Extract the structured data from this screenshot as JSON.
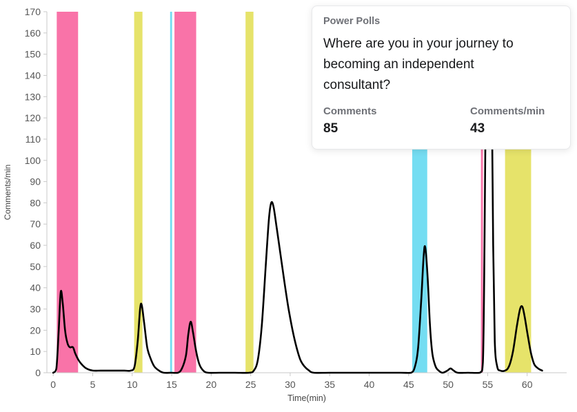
{
  "tooltip": {
    "title": "Power Polls",
    "question": "Where are you in your journey to becoming an independent consultant?",
    "stats": [
      {
        "label": "Comments",
        "value": "85"
      },
      {
        "label": "Comments/min",
        "value": "43"
      }
    ]
  },
  "chart_data": {
    "type": "line",
    "title": "",
    "xlabel": "Time(min)",
    "ylabel": "Comments/min",
    "xlim": [
      -0.8,
      65
    ],
    "ylim": [
      0,
      170
    ],
    "x_ticks": [
      0,
      5,
      10,
      15,
      20,
      25,
      30,
      35,
      40,
      45,
      50,
      55,
      60
    ],
    "y_ticks": [
      0,
      10,
      20,
      30,
      40,
      50,
      60,
      70,
      80,
      90,
      100,
      110,
      120,
      130,
      140,
      150,
      160,
      170
    ],
    "grid": false,
    "legend": "none",
    "line_color": "#000000",
    "axis_color": "#c9c9c9",
    "tick_text_color": "#555555",
    "axis_label_color": "#444444",
    "band_colors": {
      "pink": "#f973a8",
      "yellow": "#e6e36a",
      "cyan": "#74ddf2"
    },
    "bands": [
      {
        "label": "pink-1",
        "from": 0.45,
        "to": 3.15,
        "color": "#f973a8"
      },
      {
        "label": "yellow-1",
        "from": 10.25,
        "to": 11.3,
        "color": "#e6e36a"
      },
      {
        "label": "cyan-1",
        "from": 14.8,
        "to": 15.05,
        "color": "#74ddf2"
      },
      {
        "label": "pink-2",
        "from": 15.35,
        "to": 18.1,
        "color": "#f973a8"
      },
      {
        "label": "yellow-2",
        "from": 24.35,
        "to": 25.35,
        "color": "#e6e36a"
      },
      {
        "label": "cyan-2",
        "from": 45.45,
        "to": 47.35,
        "color": "#74ddf2"
      },
      {
        "label": "pink-3",
        "from": 54.15,
        "to": 54.4,
        "color": "#f973a8"
      },
      {
        "label": "yellow-3",
        "from": 57.2,
        "to": 60.5,
        "color": "#e6e36a"
      }
    ],
    "series": [
      {
        "name": "Comments/min",
        "points": [
          [
            0,
            0
          ],
          [
            0.4,
            2
          ],
          [
            0.7,
            20
          ],
          [
            0.95,
            38
          ],
          [
            1.2,
            33
          ],
          [
            1.5,
            20
          ],
          [
            1.8,
            14
          ],
          [
            2.1,
            12
          ],
          [
            2.5,
            12
          ],
          [
            2.8,
            9
          ],
          [
            3.2,
            6
          ],
          [
            3.6,
            4
          ],
          [
            4.2,
            2
          ],
          [
            5,
            1
          ],
          [
            6,
            1
          ],
          [
            7,
            1
          ],
          [
            8,
            1
          ],
          [
            9,
            1
          ],
          [
            9.8,
            1
          ],
          [
            10.3,
            3
          ],
          [
            10.7,
            15
          ],
          [
            11.0,
            30
          ],
          [
            11.2,
            32
          ],
          [
            11.5,
            24
          ],
          [
            11.9,
            12
          ],
          [
            12.3,
            7
          ],
          [
            12.8,
            3
          ],
          [
            13.4,
            1
          ],
          [
            14,
            0
          ],
          [
            15,
            0
          ],
          [
            15.8,
            0
          ],
          [
            16.3,
            2
          ],
          [
            16.8,
            8
          ],
          [
            17.1,
            18
          ],
          [
            17.4,
            24
          ],
          [
            17.7,
            19
          ],
          [
            18.1,
            10
          ],
          [
            18.5,
            4
          ],
          [
            19,
            1
          ],
          [
            19.6,
            0
          ],
          [
            21,
            0
          ],
          [
            23,
            0
          ],
          [
            24.8,
            0
          ],
          [
            25.4,
            1
          ],
          [
            25.9,
            6
          ],
          [
            26.4,
            22
          ],
          [
            26.9,
            50
          ],
          [
            27.3,
            72
          ],
          [
            27.6,
            80
          ],
          [
            27.9,
            78
          ],
          [
            28.3,
            68
          ],
          [
            28.8,
            55
          ],
          [
            29.3,
            42
          ],
          [
            29.8,
            30
          ],
          [
            30.3,
            20
          ],
          [
            30.8,
            12
          ],
          [
            31.3,
            6
          ],
          [
            31.8,
            3
          ],
          [
            32.4,
            1
          ],
          [
            33,
            0
          ],
          [
            35,
            0
          ],
          [
            38,
            0
          ],
          [
            41,
            0
          ],
          [
            44,
            0
          ],
          [
            45.3,
            0
          ],
          [
            45.8,
            3
          ],
          [
            46.2,
            12
          ],
          [
            46.6,
            35
          ],
          [
            46.9,
            55
          ],
          [
            47.1,
            59
          ],
          [
            47.4,
            45
          ],
          [
            47.7,
            22
          ],
          [
            48,
            9
          ],
          [
            48.4,
            3
          ],
          [
            48.8,
            1
          ],
          [
            49.3,
            0
          ],
          [
            49.9,
            1
          ],
          [
            50.3,
            2
          ],
          [
            50.7,
            1
          ],
          [
            51.2,
            0
          ],
          [
            52.5,
            0
          ],
          [
            54,
            0
          ],
          [
            54.4,
            5
          ],
          [
            54.6,
            60
          ],
          [
            54.8,
            150
          ],
          [
            54.95,
            170
          ],
          [
            55.35,
            170
          ],
          [
            55.5,
            140
          ],
          [
            55.7,
            60
          ],
          [
            55.9,
            15
          ],
          [
            56.2,
            3
          ],
          [
            56.6,
            1
          ],
          [
            57.2,
            1
          ],
          [
            57.7,
            3
          ],
          [
            58.2,
            10
          ],
          [
            58.7,
            22
          ],
          [
            59.1,
            30
          ],
          [
            59.4,
            31
          ],
          [
            59.7,
            26
          ],
          [
            60.1,
            17
          ],
          [
            60.5,
            9
          ],
          [
            60.9,
            4
          ],
          [
            61.4,
            2
          ],
          [
            61.9,
            1
          ]
        ]
      }
    ]
  }
}
